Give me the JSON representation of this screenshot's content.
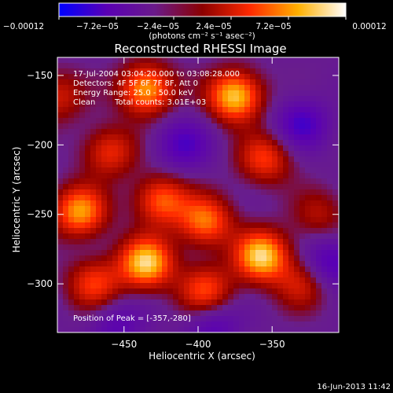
{
  "colorbar": {
    "tick_labels": [
      "−0.00012",
      "−7.2e−05",
      "−2.4e−05",
      "2.4e−05",
      "7.2e−05",
      "0.00012"
    ],
    "units": "(photons cm⁻² s⁻¹ asec⁻²)",
    "colors": [
      "#0000ff",
      "#5a00b4",
      "#6a1a8a",
      "#8c0000",
      "#ff2a00",
      "#ffb000",
      "#ffffff"
    ]
  },
  "title": "Reconstructed RHESSI Image",
  "annotations": {
    "time_range": "17-Jul-2004 03:04:20.000 to 03:08:28.000",
    "detectors": "Detectors: 4F 5F 6F 7F 8F, Att 0",
    "energy_range": "Energy Range: 25.0 - 50.0 keV",
    "clean_label": "Clean",
    "total_counts": "Total counts: 3.01E+03",
    "peak_position": "Position of Peak = [-357,-280]"
  },
  "axes": {
    "xlabel": "Heliocentric X (arcsec)",
    "ylabel": "Heliocentric Y (arcsec)",
    "x_ticks": [
      {
        "value": -450,
        "label": "−450"
      },
      {
        "value": -400,
        "label": "−400"
      },
      {
        "value": -350,
        "label": "−350"
      }
    ],
    "y_ticks": [
      {
        "value": -150,
        "label": "−150"
      },
      {
        "value": -200,
        "label": "−200"
      },
      {
        "value": -250,
        "label": "−250"
      },
      {
        "value": -300,
        "label": "−300"
      }
    ],
    "xlim": [
      -495,
      -305
    ],
    "ylim": [
      -335,
      -137
    ]
  },
  "image_blobs": [
    {
      "x": -435,
      "y": -160,
      "amp": 0.9
    },
    {
      "x": -375,
      "y": -165,
      "amp": 1.0
    },
    {
      "x": -460,
      "y": -205,
      "amp": 0.55
    },
    {
      "x": -355,
      "y": -210,
      "amp": 0.6
    },
    {
      "x": -480,
      "y": -248,
      "amp": 0.85
    },
    {
      "x": -425,
      "y": -240,
      "amp": 0.7
    },
    {
      "x": -395,
      "y": -255,
      "amp": 0.75
    },
    {
      "x": -435,
      "y": -285,
      "amp": 1.0
    },
    {
      "x": -357,
      "y": -280,
      "amp": 1.0
    },
    {
      "x": -470,
      "y": -300,
      "amp": 0.6
    },
    {
      "x": -395,
      "y": -305,
      "amp": 0.65
    },
    {
      "x": -330,
      "y": -300,
      "amp": 0.45
    },
    {
      "x": -495,
      "y": -165,
      "amp": 0.45
    },
    {
      "x": -318,
      "y": -250,
      "amp": 0.35
    },
    {
      "x": -410,
      "y": -200,
      "amp": -0.45
    },
    {
      "x": -330,
      "y": -185,
      "amp": -0.5
    },
    {
      "x": -455,
      "y": -330,
      "amp": -0.35
    },
    {
      "x": -390,
      "y": -330,
      "amp": -0.4
    },
    {
      "x": -310,
      "y": -285,
      "amp": -0.5
    }
  ],
  "footer_date": "16-Jun-2013 11:42"
}
